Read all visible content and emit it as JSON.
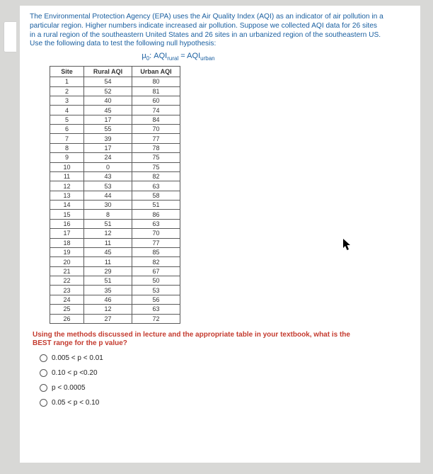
{
  "intro": "The Environmental Protection Agency (EPA) uses the Air Quality Index (AQI) as an indicator of air pollution in a particular region. Higher numbers indicate increased air pollution. Suppose we collected AQI data for 26 sites in a rural region of the southeastern United States and 26 sites in an urbanized region of the southeastern US. Use the following data to test the following null hypothesis:",
  "hypothesis_html": "μ0: AQIrural = AQIurban",
  "hypothesis": {
    "prefix": "μ",
    "sub0": "0",
    "mid": ": AQI",
    "sub1": "rural",
    "eq": " = AQI",
    "sub2": "urban"
  },
  "table": {
    "headers": [
      "Site",
      "Rural AQI",
      "Urban AQI"
    ],
    "rows": [
      [
        "1",
        "54",
        "80"
      ],
      [
        "2",
        "52",
        "81"
      ],
      [
        "3",
        "40",
        "60"
      ],
      [
        "4",
        "45",
        "74"
      ],
      [
        "5",
        "17",
        "84"
      ],
      [
        "6",
        "55",
        "70"
      ],
      [
        "7",
        "39",
        "77"
      ],
      [
        "8",
        "17",
        "78"
      ],
      [
        "9",
        "24",
        "75"
      ],
      [
        "10",
        "0",
        "75"
      ],
      [
        "11",
        "43",
        "82"
      ],
      [
        "12",
        "53",
        "63"
      ],
      [
        "13",
        "44",
        "58"
      ],
      [
        "14",
        "30",
        "51"
      ],
      [
        "15",
        "8",
        "86"
      ],
      [
        "16",
        "51",
        "63"
      ],
      [
        "17",
        "12",
        "70"
      ],
      [
        "18",
        "11",
        "77"
      ],
      [
        "19",
        "45",
        "85"
      ],
      [
        "20",
        "11",
        "82"
      ],
      [
        "21",
        "29",
        "67"
      ],
      [
        "22",
        "51",
        "50"
      ],
      [
        "23",
        "35",
        "53"
      ],
      [
        "24",
        "46",
        "56"
      ],
      [
        "25",
        "12",
        "63"
      ],
      [
        "26",
        "27",
        "72"
      ]
    ]
  },
  "question": "Using the methods discussed in lecture and the appropriate table in your textbook, what is the BEST range for the p value?",
  "options": [
    "0.005 < p < 0.01",
    "0.10 < p <0.20",
    "p < 0.0005",
    "0.05 < p < 0.10"
  ],
  "colors": {
    "page_bg": "#ffffff",
    "body_bg": "#d8d8d6",
    "intro_color": "#1a5fa0",
    "question_color": "#c43b2f",
    "border_color": "#5a5a5a"
  }
}
